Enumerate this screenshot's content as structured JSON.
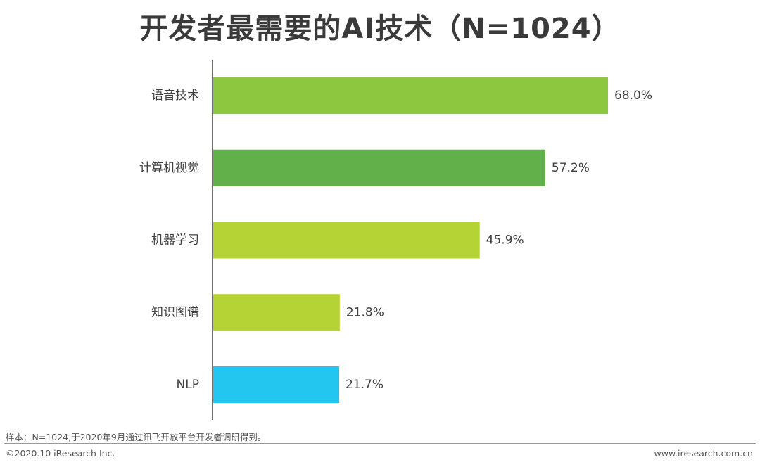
{
  "title": "开发者最需要的AI技术（N=1024）",
  "footer": {
    "note": "样本：N=1024,于2020年9月通过讯飞开放平台开发者调研得到。",
    "copyright": "©2020.10 iResearch Inc.",
    "website": "www.iresearch.com.cn"
  },
  "chart_data": {
    "type": "bar",
    "orientation": "horizontal",
    "categories": [
      "语音技术",
      "计算机视觉",
      "机器学习",
      "知识图谱",
      "NLP"
    ],
    "values": [
      68.0,
      57.2,
      45.9,
      21.8,
      21.7
    ],
    "value_labels": [
      "68.0%",
      "57.2%",
      "45.9%",
      "21.8%",
      "21.7%"
    ],
    "colors": [
      "#8dc63f",
      "#62b04a",
      "#b5d334",
      "#b5d334",
      "#22c6ee"
    ],
    "xlim": [
      0,
      68
    ],
    "grid": false,
    "title": "开发者最需要的AI技术（N=1024）"
  }
}
